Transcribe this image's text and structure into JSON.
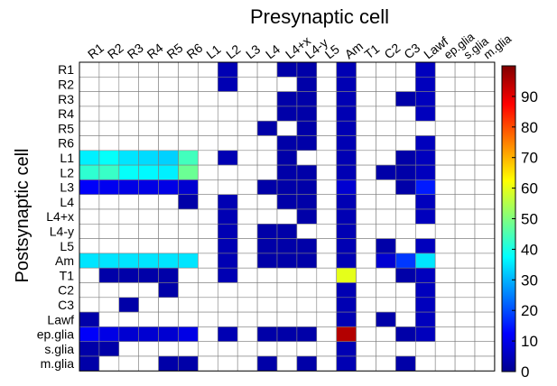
{
  "chart_data": {
    "type": "heatmap",
    "title": "Presynaptic cell",
    "ylabel": "Postsynaptic cell",
    "x_categories": [
      "R1",
      "R2",
      "R3",
      "R4",
      "R5",
      "R6",
      "L1",
      "L2",
      "L3",
      "L4",
      "L4+x",
      "L4-y",
      "L5",
      "Am",
      "T1",
      "C2",
      "C3",
      "Lawf",
      "ep.glia",
      "s.glia",
      "m.glia"
    ],
    "y_categories": [
      "R1",
      "R2",
      "R3",
      "R4",
      "R5",
      "R6",
      "L1",
      "L2",
      "L3",
      "L4",
      "L4+x",
      "L4-y",
      "L5",
      "Am",
      "T1",
      "C2",
      "C3",
      "Lawf",
      "ep.glia",
      "s.glia",
      "m.glia"
    ],
    "values": [
      [
        null,
        null,
        null,
        null,
        null,
        null,
        null,
        5,
        null,
        null,
        4,
        4,
        null,
        5,
        null,
        null,
        null,
        6,
        null,
        null,
        null
      ],
      [
        null,
        null,
        null,
        null,
        null,
        null,
        null,
        5,
        null,
        null,
        null,
        4,
        null,
        5,
        null,
        null,
        null,
        6,
        null,
        null,
        null
      ],
      [
        null,
        null,
        null,
        null,
        null,
        null,
        null,
        null,
        null,
        null,
        4,
        4,
        null,
        5,
        null,
        null,
        4,
        6,
        null,
        null,
        null
      ],
      [
        null,
        null,
        null,
        null,
        null,
        null,
        null,
        null,
        null,
        null,
        4,
        4,
        null,
        5,
        null,
        null,
        null,
        6,
        null,
        null,
        null
      ],
      [
        null,
        null,
        null,
        null,
        null,
        null,
        null,
        null,
        null,
        4,
        null,
        4,
        null,
        5,
        null,
        null,
        null,
        null,
        null,
        null,
        null
      ],
      [
        null,
        null,
        null,
        null,
        null,
        null,
        null,
        null,
        null,
        null,
        4,
        4,
        null,
        5,
        null,
        null,
        null,
        6,
        null,
        null,
        null
      ],
      [
        36,
        38,
        35,
        34,
        33,
        44,
        null,
        5,
        null,
        null,
        4,
        null,
        null,
        5,
        null,
        null,
        4,
        6,
        null,
        null,
        null
      ],
      [
        42,
        43,
        38,
        37,
        36,
        48,
        null,
        null,
        null,
        null,
        4,
        4,
        null,
        5,
        null,
        4,
        4,
        6,
        null,
        null,
        null
      ],
      [
        12,
        11,
        10,
        10,
        10,
        8,
        null,
        null,
        null,
        4,
        4,
        4,
        null,
        8,
        null,
        null,
        4,
        15,
        null,
        null,
        null
      ],
      [
        null,
        null,
        null,
        null,
        null,
        4,
        null,
        5,
        null,
        null,
        4,
        4,
        null,
        5,
        null,
        null,
        null,
        6,
        null,
        null,
        null
      ],
      [
        null,
        null,
        null,
        null,
        null,
        null,
        null,
        5,
        null,
        null,
        null,
        4,
        null,
        5,
        null,
        null,
        null,
        6,
        null,
        null,
        null
      ],
      [
        null,
        null,
        null,
        null,
        null,
        null,
        null,
        5,
        null,
        4,
        4,
        null,
        null,
        5,
        null,
        null,
        null,
        null,
        null,
        null,
        null
      ],
      [
        null,
        null,
        null,
        null,
        null,
        null,
        null,
        5,
        null,
        4,
        4,
        4,
        null,
        5,
        null,
        4,
        null,
        6,
        null,
        null,
        null
      ],
      [
        35,
        35,
        35,
        35,
        35,
        35,
        null,
        5,
        null,
        4,
        4,
        4,
        null,
        5,
        null,
        8,
        18,
        35,
        null,
        null,
        null
      ],
      [
        null,
        4,
        4,
        4,
        4,
        null,
        null,
        5,
        null,
        null,
        null,
        null,
        null,
        60,
        null,
        null,
        4,
        6,
        null,
        null,
        null
      ],
      [
        null,
        null,
        null,
        null,
        4,
        null,
        null,
        null,
        null,
        null,
        null,
        null,
        null,
        5,
        null,
        null,
        null,
        6,
        null,
        null,
        null
      ],
      [
        null,
        null,
        4,
        null,
        null,
        null,
        null,
        null,
        null,
        null,
        null,
        null,
        null,
        5,
        null,
        null,
        null,
        6,
        null,
        null,
        null
      ],
      [
        4,
        null,
        null,
        null,
        null,
        null,
        null,
        null,
        null,
        null,
        null,
        null,
        null,
        5,
        null,
        4,
        null,
        6,
        null,
        null,
        null
      ],
      [
        12,
        10,
        8,
        8,
        8,
        10,
        null,
        5,
        null,
        4,
        4,
        4,
        null,
        95,
        null,
        null,
        4,
        6,
        null,
        null,
        null
      ],
      [
        4,
        4,
        null,
        null,
        null,
        null,
        null,
        null,
        null,
        null,
        null,
        null,
        null,
        5,
        null,
        null,
        null,
        null,
        null,
        null,
        null
      ],
      [
        4,
        null,
        null,
        null,
        4,
        4,
        null,
        null,
        null,
        4,
        null,
        4,
        null,
        5,
        null,
        null,
        4,
        null,
        null,
        null,
        null
      ]
    ],
    "colorbar": {
      "min": 0,
      "max": 100,
      "ticks": [
        0,
        10,
        20,
        30,
        40,
        50,
        60,
        70,
        80,
        90
      ]
    },
    "colormap": "jet",
    "grid": true
  }
}
